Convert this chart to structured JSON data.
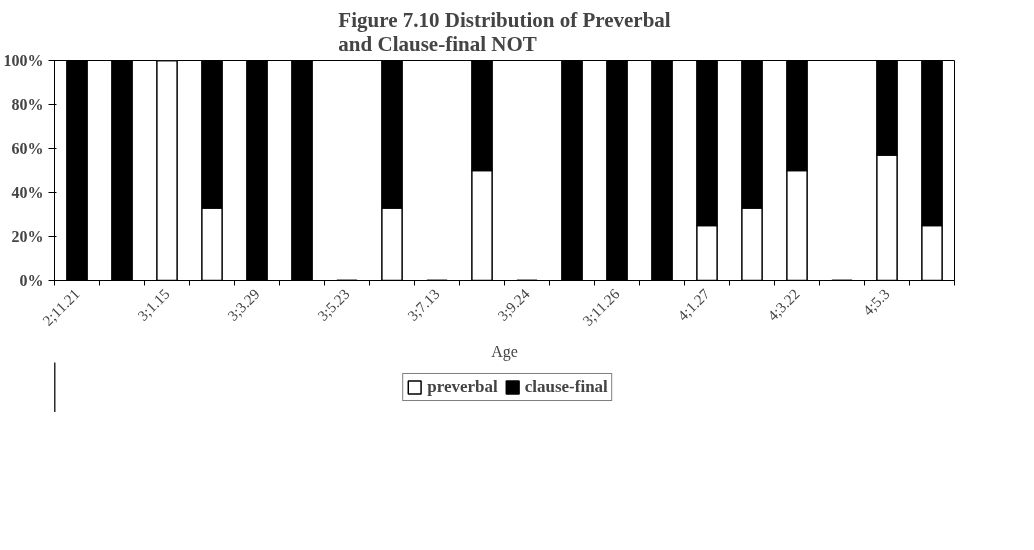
{
  "chart_data": {
    "type": "bar",
    "stacked": true,
    "title": "Figure 7.10 Distribution of Preverbal and Clause-final NOT",
    "xlabel": "Age",
    "categories": [
      "2;11.21",
      null,
      "3;1.15",
      null,
      "3;3.29",
      null,
      "3;5.23",
      null,
      "3;7.13",
      null,
      "3;9.24",
      null,
      "3;11.26",
      null,
      "4;1.27",
      null,
      "4;3.22",
      null,
      "4;5.3",
      null
    ],
    "series": [
      {
        "name": "preverbal",
        "color": "#ffffff",
        "values": [
          0,
          0,
          100,
          33,
          0,
          0,
          0,
          33,
          0,
          50,
          0,
          0,
          0,
          0,
          25,
          33,
          50,
          0,
          57,
          25
        ]
      },
      {
        "name": "clause-final",
        "color": "#000000",
        "values": [
          100,
          100,
          0,
          67,
          100,
          100,
          0,
          67,
          0,
          50,
          0,
          100,
          100,
          100,
          75,
          67,
          50,
          0,
          43,
          75
        ]
      }
    ],
    "ylim": [
      0,
      100
    ],
    "yticks": [
      {
        "value": 0,
        "label": "0%"
      },
      {
        "value": 20,
        "label": "20%"
      },
      {
        "value": 40,
        "label": "40%"
      },
      {
        "value": 60,
        "label": "60%"
      },
      {
        "value": 80,
        "label": "80%"
      },
      {
        "value": 100,
        "label": "100%"
      }
    ],
    "grid": false,
    "legend": "bottom"
  }
}
